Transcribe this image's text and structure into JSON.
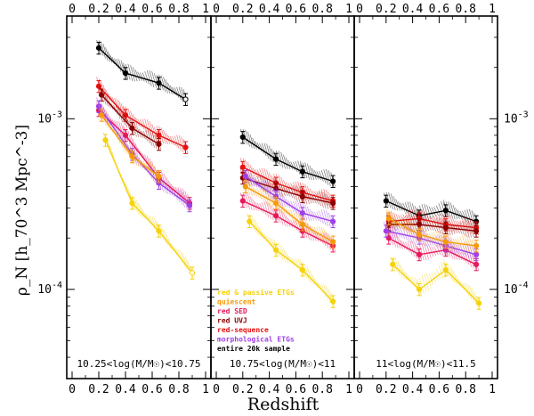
{
  "chart_data": {
    "type": "line",
    "xlabel": "Redshift",
    "ylabel": "ρ_N [h_70^3 Mpc^-3]",
    "yscale": "log",
    "ylim": [
      3e-05,
      0.004
    ],
    "xlim": [
      0,
      1
    ],
    "x_tick_labels": [
      "0",
      "0.2",
      "0.4",
      "0.6",
      "0.8",
      "1"
    ],
    "y_tick_labels": [
      "10^-3",
      "10^-4"
    ],
    "legend": [
      {
        "label": "red & passive ETGs",
        "color": "#f5d20a"
      },
      {
        "label": "quiescent",
        "color": "#f59a0a"
      },
      {
        "label": "red SED",
        "color": "#e8185a"
      },
      {
        "label": "red UVJ",
        "color": "#8b0000"
      },
      {
        "label": "red-sequence",
        "color": "#e81010"
      },
      {
        "label": "morphological ETGs",
        "color": "#a040e8"
      },
      {
        "label": "entire 20k sample",
        "color": "#000000"
      }
    ],
    "panels": [
      {
        "label": "10.25<log(M/M☉)<10.75",
        "series": [
          {
            "name": "entire 20k sample",
            "color": "#000000",
            "x": [
              0.2,
              0.4,
              0.65,
              0.85
            ],
            "y": [
              0.0026,
              0.00185,
              0.00162,
              0.0013
            ]
          },
          {
            "name": "red-sequence",
            "color": "#e81010",
            "x": [
              0.2,
              0.4,
              0.65,
              0.85
            ],
            "y": [
              0.00155,
              0.00105,
              0.0008,
              0.00068
            ]
          },
          {
            "name": "red UVJ",
            "color": "#8b0000",
            "x": [
              0.22,
              0.45,
              0.65
            ],
            "y": [
              0.00138,
              0.00088,
              0.00071
            ]
          },
          {
            "name": "red SED",
            "color": "#e8185a",
            "x": [
              0.2,
              0.4,
              0.65,
              0.88
            ],
            "y": [
              0.00112,
              0.0008,
              0.00045,
              0.00032
            ]
          },
          {
            "name": "morphological ETGs",
            "color": "#a040e8",
            "x": [
              0.2,
              0.45,
              0.65,
              0.88
            ],
            "y": [
              0.00118,
              0.00062,
              0.00042,
              0.00031
            ]
          },
          {
            "name": "quiescent",
            "color": "#f59a0a",
            "x": [
              0.22,
              0.45,
              0.65
            ],
            "y": [
              0.00105,
              0.0006,
              0.00046
            ]
          },
          {
            "name": "red & passive ETGs",
            "color": "#f5d20a",
            "x": [
              0.25,
              0.45,
              0.65,
              0.9
            ],
            "y": [
              0.00075,
              0.00032,
              0.00022,
              0.000125
            ]
          }
        ]
      },
      {
        "label": "10.75<log(M/M☉)<11",
        "series": [
          {
            "name": "entire 20k sample",
            "color": "#000000",
            "x": [
              0.2,
              0.45,
              0.65,
              0.88
            ],
            "y": [
              0.00078,
              0.00058,
              0.00049,
              0.00043
            ]
          },
          {
            "name": "red-sequence",
            "color": "#e81010",
            "x": [
              0.2,
              0.45,
              0.65,
              0.88
            ],
            "y": [
              0.00052,
              0.00042,
              0.00037,
              0.00033
            ]
          },
          {
            "name": "red UVJ",
            "color": "#8b0000",
            "x": [
              0.2,
              0.45,
              0.65,
              0.88
            ],
            "y": [
              0.00045,
              0.00039,
              0.00035,
              0.00032
            ]
          },
          {
            "name": "red SED",
            "color": "#e8185a",
            "x": [
              0.2,
              0.45,
              0.65,
              0.88
            ],
            "y": [
              0.00033,
              0.00027,
              0.00022,
              0.00018
            ]
          },
          {
            "name": "morphological ETGs",
            "color": "#a040e8",
            "x": [
              0.22,
              0.45,
              0.65,
              0.88
            ],
            "y": [
              0.00046,
              0.00035,
              0.00028,
              0.00025
            ]
          },
          {
            "name": "quiescent",
            "color": "#f59a0a",
            "x": [
              0.22,
              0.45,
              0.65,
              0.88
            ],
            "y": [
              0.0004,
              0.00032,
              0.00024,
              0.00019
            ]
          },
          {
            "name": "red & passive ETGs",
            "color": "#f5d20a",
            "x": [
              0.25,
              0.45,
              0.65,
              0.88
            ],
            "y": [
              0.00025,
              0.00017,
              0.00013,
              8.5e-05
            ]
          }
        ]
      },
      {
        "label": "11<log(M/M☉)<11.5",
        "series": [
          {
            "name": "entire 20k sample",
            "color": "#000000",
            "x": [
              0.2,
              0.45,
              0.65,
              0.88
            ],
            "y": [
              0.00033,
              0.00027,
              0.00029,
              0.00025
            ]
          },
          {
            "name": "red-sequence",
            "color": "#e81010",
            "x": [
              0.22,
              0.45,
              0.65,
              0.88
            ],
            "y": [
              0.00025,
              0.00026,
              0.00024,
              0.00023
            ]
          },
          {
            "name": "red UVJ",
            "color": "#8b0000",
            "x": [
              0.22,
              0.45,
              0.65,
              0.88
            ],
            "y": [
              0.00024,
              0.00024,
              0.00023,
              0.00022
            ]
          },
          {
            "name": "red SED",
            "color": "#e8185a",
            "x": [
              0.22,
              0.45,
              0.65,
              0.88
            ],
            "y": [
              0.0002,
              0.00016,
              0.00017,
              0.00014
            ]
          },
          {
            "name": "morphological ETGs",
            "color": "#a040e8",
            "x": [
              0.2,
              0.45,
              0.65,
              0.88
            ],
            "y": [
              0.00022,
              0.0002,
              0.00018,
              0.00016
            ]
          },
          {
            "name": "quiescent",
            "color": "#f59a0a",
            "x": [
              0.22,
              0.45,
              0.65,
              0.88
            ],
            "y": [
              0.00026,
              0.00021,
              0.00019,
              0.00018
            ]
          },
          {
            "name": "red & passive ETGs",
            "color": "#f5d20a",
            "x": [
              0.25,
              0.45,
              0.65,
              0.9
            ],
            "y": [
              0.00014,
              0.0001,
              0.00013,
              8.3e-05
            ]
          }
        ]
      }
    ]
  }
}
